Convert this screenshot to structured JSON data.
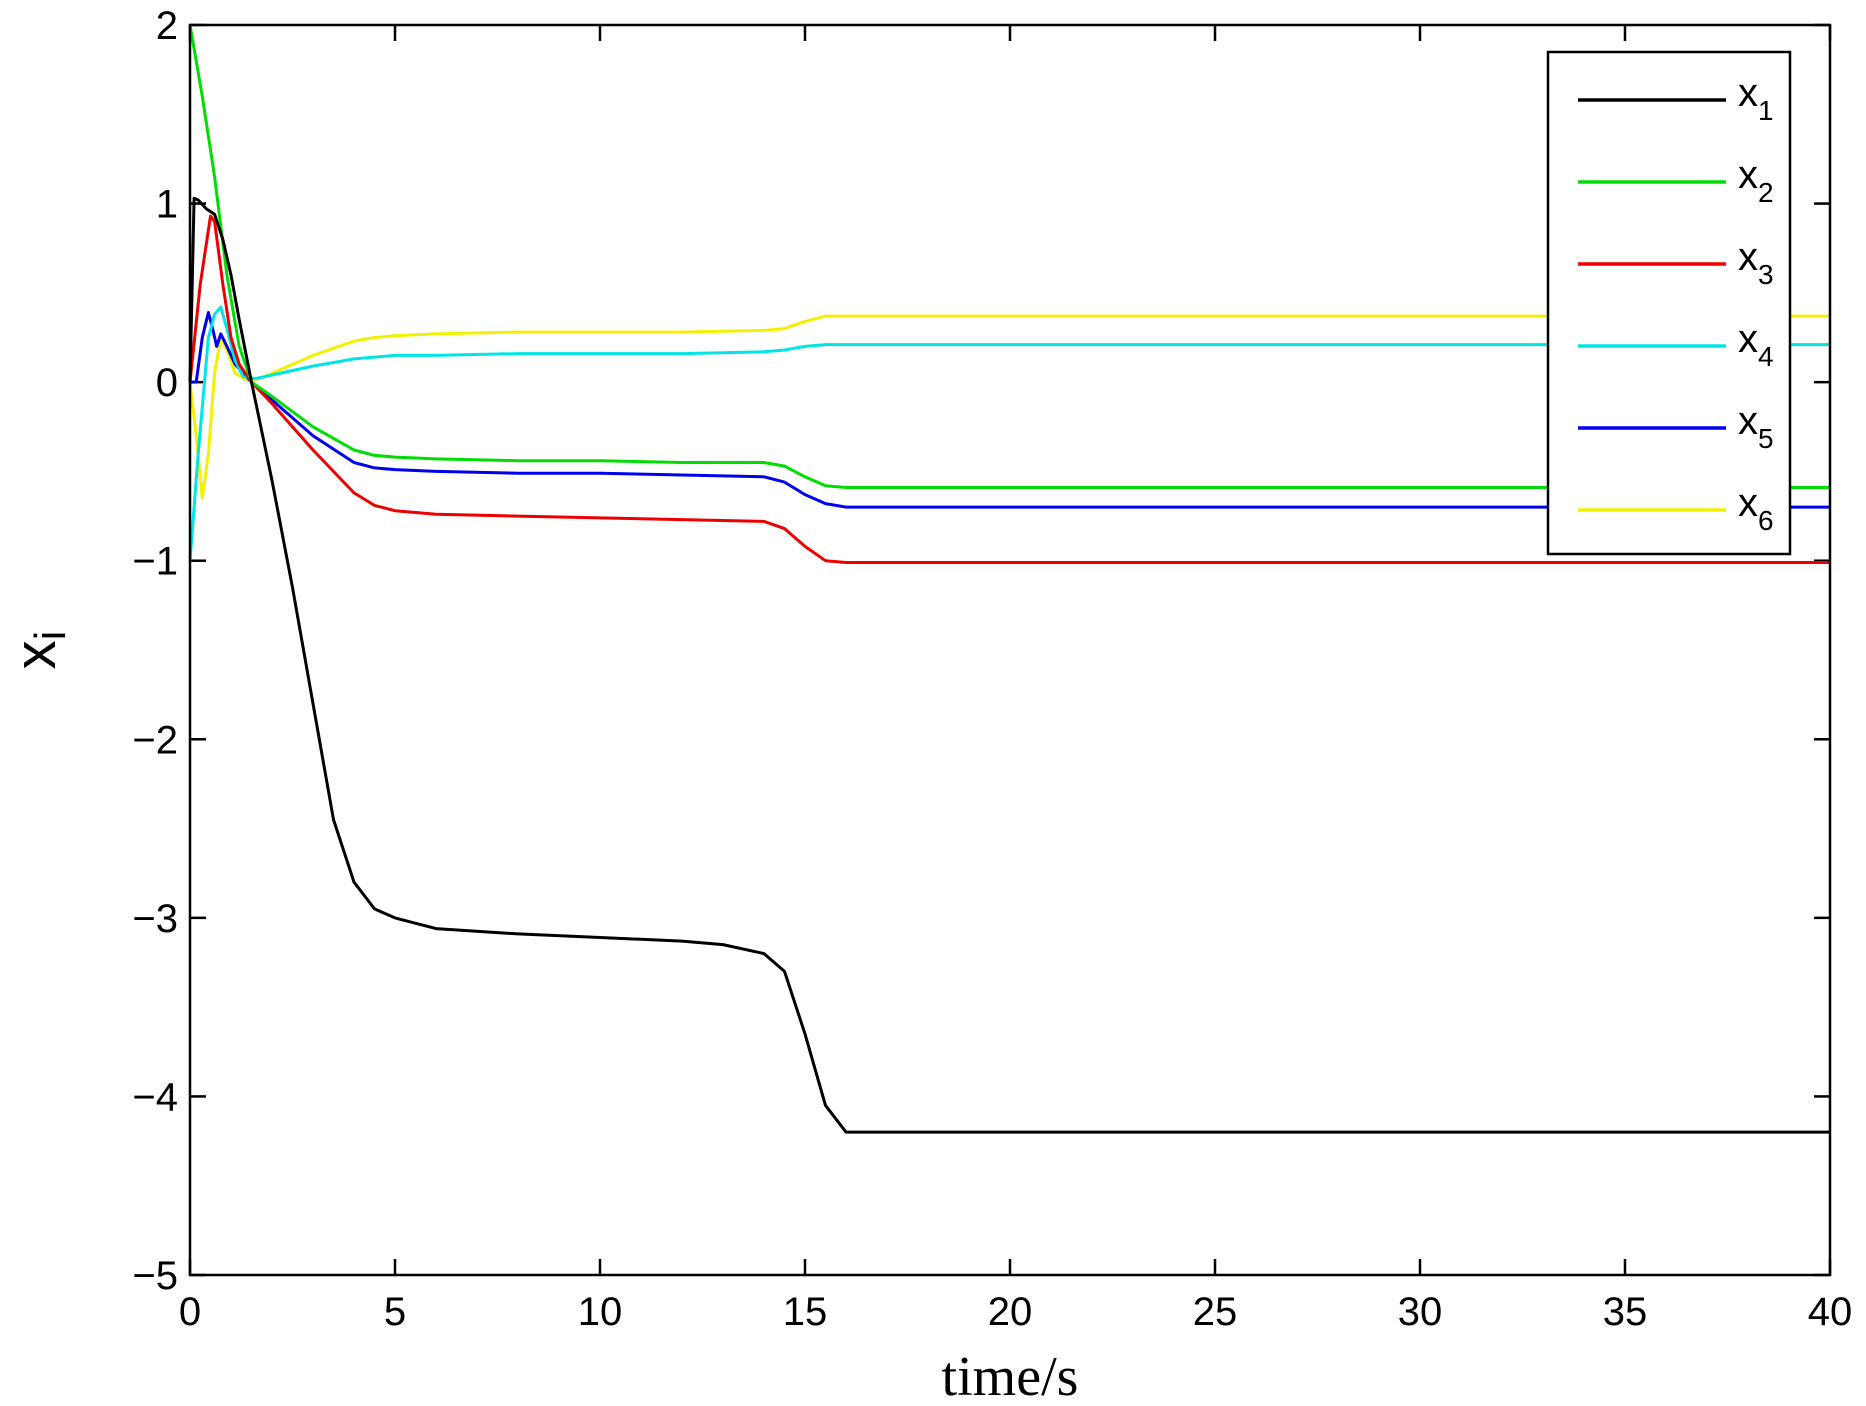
{
  "chart_data": {
    "type": "line",
    "xlabel": "time/s",
    "ylabel": "x",
    "ylabel_subscript": "i",
    "xlim": [
      0,
      40
    ],
    "ylim": [
      -5,
      2
    ],
    "xticks": [
      0,
      5,
      10,
      15,
      20,
      25,
      30,
      35,
      40
    ],
    "yticks": [
      -5,
      -4,
      -3,
      -2,
      -1,
      0,
      1,
      2
    ],
    "grid": false,
    "legend_position": "top-right",
    "series": [
      {
        "name": "x",
        "subscript": "1",
        "color": "#000000",
        "x": [
          0,
          0.1,
          0.2,
          0.4,
          0.6,
          0.8,
          1.0,
          1.2,
          1.5,
          2,
          2.5,
          3,
          3.5,
          4,
          4.5,
          5,
          6,
          8,
          10,
          12,
          13,
          14,
          14.5,
          15,
          15.5,
          16,
          17,
          20,
          25,
          30,
          35,
          40
        ],
        "y": [
          0,
          1.03,
          1.02,
          0.97,
          0.94,
          0.8,
          0.6,
          0.35,
          0.0,
          -0.55,
          -1.15,
          -1.8,
          -2.45,
          -2.8,
          -2.95,
          -3.0,
          -3.06,
          -3.09,
          -3.11,
          -3.13,
          -3.15,
          -3.2,
          -3.3,
          -3.65,
          -4.05,
          -4.2,
          -4.2,
          -4.2,
          -4.2,
          -4.2,
          -4.2,
          -4.2
        ]
      },
      {
        "name": "x",
        "subscript": "2",
        "color": "#00dd00",
        "x": [
          0,
          0.3,
          0.6,
          0.9,
          1.2,
          1.5,
          2,
          3,
          4,
          4.5,
          5,
          6,
          8,
          10,
          12,
          14,
          14.5,
          15,
          15.5,
          16,
          20,
          25,
          30,
          35,
          40
        ],
        "y": [
          2.0,
          1.6,
          1.15,
          0.6,
          0.2,
          0.0,
          -0.08,
          -0.25,
          -0.38,
          -0.41,
          -0.42,
          -0.43,
          -0.44,
          -0.44,
          -0.45,
          -0.45,
          -0.47,
          -0.53,
          -0.58,
          -0.59,
          -0.59,
          -0.59,
          -0.59,
          -0.59,
          -0.59
        ]
      },
      {
        "name": "x",
        "subscript": "3",
        "color": "#ee0000",
        "x": [
          0,
          0.25,
          0.5,
          0.6,
          0.8,
          1.0,
          1.2,
          1.5,
          2,
          3,
          4,
          4.5,
          5,
          6,
          8,
          10,
          12,
          14,
          14.5,
          15,
          15.5,
          16,
          20,
          25,
          30,
          35,
          40
        ],
        "y": [
          0,
          0.55,
          0.93,
          0.9,
          0.55,
          0.25,
          0.1,
          0.0,
          -0.12,
          -0.38,
          -0.62,
          -0.69,
          -0.72,
          -0.74,
          -0.75,
          -0.76,
          -0.77,
          -0.78,
          -0.82,
          -0.92,
          -1.0,
          -1.01,
          -1.01,
          -1.01,
          -1.01,
          -1.01,
          -1.01
        ]
      },
      {
        "name": "x",
        "subscript": "4",
        "color": "#00e5e5",
        "x": [
          0,
          0.2,
          0.45,
          0.6,
          0.75,
          0.9,
          1.1,
          1.3,
          1.6,
          2,
          3,
          4,
          5,
          6,
          8,
          10,
          12,
          14,
          14.5,
          15,
          15.5,
          16,
          20,
          25,
          30,
          35,
          40
        ],
        "y": [
          -1.0,
          -0.4,
          0.25,
          0.38,
          0.42,
          0.3,
          0.12,
          0.03,
          0.02,
          0.04,
          0.09,
          0.13,
          0.15,
          0.15,
          0.16,
          0.16,
          0.16,
          0.17,
          0.18,
          0.2,
          0.21,
          0.21,
          0.21,
          0.21,
          0.21,
          0.21,
          0.21
        ]
      },
      {
        "name": "x",
        "subscript": "5",
        "color": "#0000ee",
        "x": [
          0,
          0.15,
          0.3,
          0.45,
          0.55,
          0.65,
          0.75,
          0.9,
          1.1,
          1.3,
          1.5,
          2,
          3,
          4,
          4.5,
          5,
          6,
          8,
          10,
          12,
          14,
          14.5,
          15,
          15.5,
          16,
          20,
          25,
          30,
          35,
          40
        ],
        "y": [
          0,
          0.0,
          0.25,
          0.39,
          0.3,
          0.2,
          0.27,
          0.2,
          0.1,
          0.05,
          0.0,
          -0.1,
          -0.3,
          -0.45,
          -0.48,
          -0.49,
          -0.5,
          -0.51,
          -0.51,
          -0.52,
          -0.53,
          -0.56,
          -0.63,
          -0.68,
          -0.7,
          -0.7,
          -0.7,
          -0.7,
          -0.7,
          -0.7
        ]
      },
      {
        "name": "x",
        "subscript": "6",
        "color": "#f2f200",
        "x": [
          0,
          0.15,
          0.3,
          0.45,
          0.6,
          0.75,
          0.9,
          1.1,
          1.4,
          1.7,
          2,
          3,
          4,
          4.5,
          5,
          6,
          8,
          10,
          12,
          14,
          14.5,
          15,
          15.5,
          16,
          20,
          25,
          30,
          35,
          40
        ],
        "y": [
          0,
          -0.3,
          -0.65,
          -0.4,
          0.05,
          0.25,
          0.18,
          0.05,
          0.01,
          0.02,
          0.05,
          0.15,
          0.23,
          0.25,
          0.26,
          0.27,
          0.28,
          0.28,
          0.28,
          0.29,
          0.3,
          0.34,
          0.37,
          0.37,
          0.37,
          0.37,
          0.37,
          0.37,
          0.37
        ]
      }
    ]
  }
}
